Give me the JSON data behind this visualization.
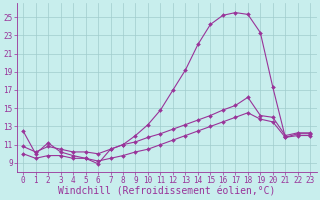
{
  "xlabel": "Windchill (Refroidissement éolien,°C)",
  "ylabel": "",
  "bg_color": "#c8eeed",
  "line_color": "#993399",
  "grid_color": "#a0cccc",
  "xlim": [
    -0.5,
    23.5
  ],
  "ylim": [
    8.0,
    26.5
  ],
  "xticks": [
    0,
    1,
    2,
    3,
    4,
    5,
    6,
    7,
    8,
    9,
    10,
    11,
    12,
    13,
    14,
    15,
    16,
    17,
    18,
    19,
    20,
    21,
    22,
    23
  ],
  "yticks": [
    9,
    11,
    13,
    15,
    17,
    19,
    21,
    23,
    25
  ],
  "line1_x": [
    0,
    1,
    2,
    3,
    4,
    5,
    6,
    7,
    8,
    9,
    10,
    11,
    12,
    13,
    14,
    15,
    16,
    17,
    18,
    19,
    20,
    21,
    22,
    23
  ],
  "line1_y": [
    12.5,
    10.0,
    11.2,
    10.2,
    9.8,
    9.5,
    8.9,
    10.5,
    11.0,
    12.0,
    13.2,
    14.8,
    17.0,
    19.2,
    22.0,
    24.2,
    25.2,
    25.5,
    25.3,
    23.3,
    17.3,
    11.8,
    12.2,
    12.2
  ],
  "line2_x": [
    0,
    1,
    2,
    3,
    4,
    5,
    6,
    7,
    8,
    9,
    10,
    11,
    12,
    13,
    14,
    15,
    16,
    17,
    18,
    19,
    20,
    21,
    22,
    23
  ],
  "line2_y": [
    10.8,
    10.2,
    10.8,
    10.5,
    10.2,
    10.2,
    10.0,
    10.5,
    11.0,
    11.3,
    11.8,
    12.2,
    12.7,
    13.2,
    13.7,
    14.2,
    14.8,
    15.3,
    16.2,
    14.2,
    14.0,
    12.0,
    12.3,
    12.3
  ],
  "line3_x": [
    0,
    1,
    2,
    3,
    4,
    5,
    6,
    7,
    8,
    9,
    10,
    11,
    12,
    13,
    14,
    15,
    16,
    17,
    18,
    19,
    20,
    21,
    22,
    23
  ],
  "line3_y": [
    10.0,
    9.5,
    9.8,
    9.8,
    9.5,
    9.5,
    9.2,
    9.5,
    9.8,
    10.2,
    10.5,
    11.0,
    11.5,
    12.0,
    12.5,
    13.0,
    13.5,
    14.0,
    14.5,
    13.8,
    13.5,
    11.8,
    12.0,
    12.0
  ],
  "font_family": "monospace",
  "tick_fontsize": 5.5,
  "label_fontsize": 7.0,
  "marker": "D",
  "markersize": 2.0,
  "linewidth": 0.8
}
